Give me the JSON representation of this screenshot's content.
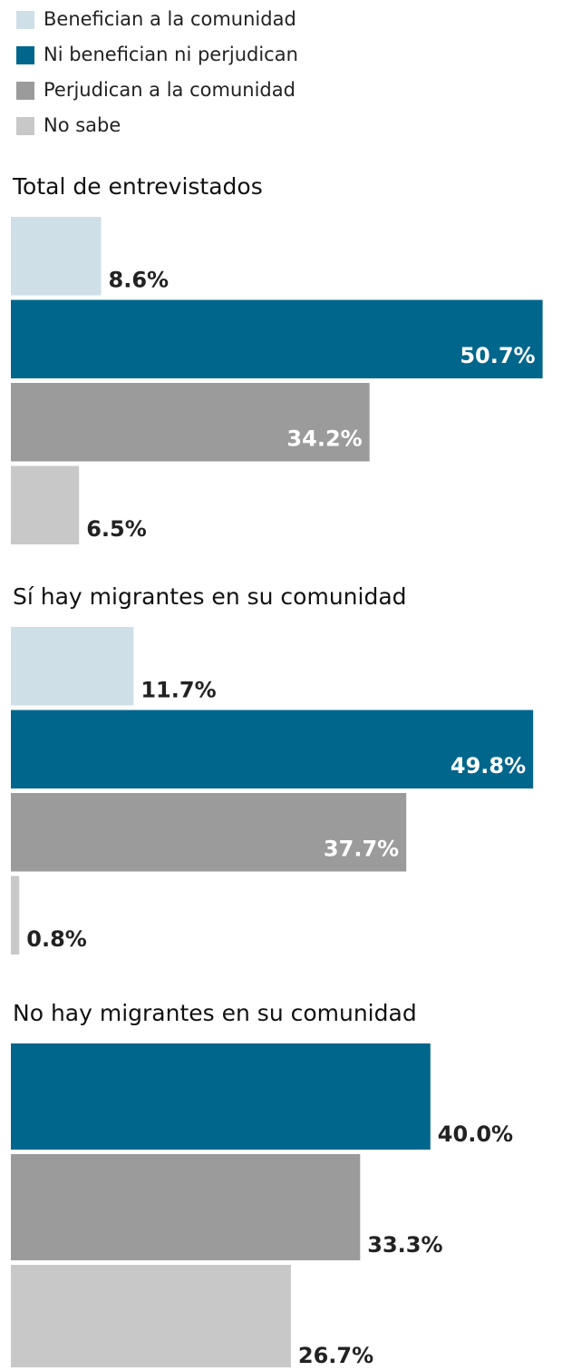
{
  "chart_data": {
    "type": "bar",
    "orientation": "horizontal",
    "categories": [
      "Total de entrevistados",
      "Sí hay migrantes en su comunidad",
      "No hay migrantes en su comunidad"
    ],
    "series": [
      {
        "name": "Benefician a la comunidad",
        "color": "#cfdfe8",
        "values": [
          8.6,
          11.7,
          null
        ],
        "value_labels": [
          "8.6%",
          "11.7%",
          null
        ]
      },
      {
        "name": "Ni benefician ni perjudican",
        "color": "#00668c",
        "values": [
          50.7,
          49.8,
          40.0
        ],
        "value_labels": [
          "50.7%",
          "49.8%",
          "40.0%"
        ]
      },
      {
        "name": "Perjudican a la comunidad",
        "color": "#9b9b9b",
        "values": [
          34.2,
          37.7,
          33.3
        ],
        "value_labels": [
          "34.2%",
          "37.7%",
          "33.3%"
        ]
      },
      {
        "name": "No sabe",
        "color": "#c8c8c8",
        "values": [
          6.5,
          0.8,
          26.7
        ],
        "value_labels": [
          "6.5%",
          "0.8%",
          "26.7%"
        ]
      }
    ],
    "legend": "top-left"
  }
}
